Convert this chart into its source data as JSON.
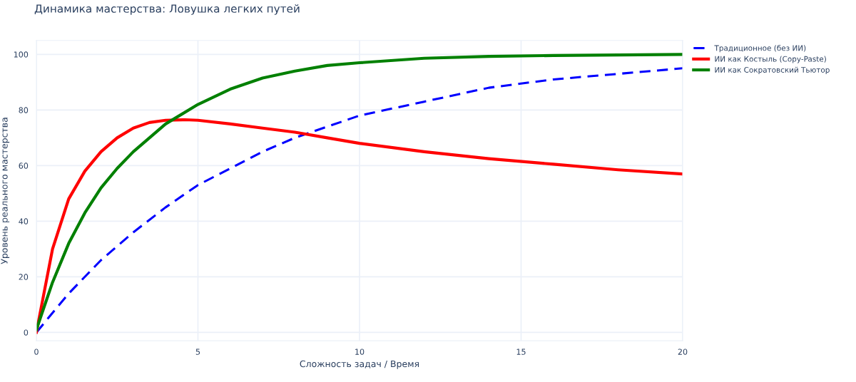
{
  "chart_data": {
    "type": "line",
    "title": "Динамика мастерства: Ловушка легких путей",
    "xlabel": "Сложность задач / Время",
    "ylabel": "Уровень реального мастерства",
    "xlim": [
      0,
      20
    ],
    "ylim": [
      -3,
      105
    ],
    "xticks": [
      0,
      5,
      10,
      15,
      20
    ],
    "yticks": [
      0,
      20,
      40,
      60,
      80,
      100
    ],
    "grid": true,
    "legend": "top right",
    "marker": "none",
    "series": [
      {
        "name": "Традиционное (без ИИ)",
        "color": "#0000ff",
        "line_style": "dashed",
        "x": [
          0,
          1,
          2,
          3,
          4,
          5,
          6,
          7,
          8,
          9,
          10,
          12,
          14,
          16,
          18,
          20
        ],
        "values": [
          0,
          14,
          26,
          36,
          45,
          53,
          59,
          65,
          70,
          74,
          78,
          83,
          88,
          91,
          93,
          95
        ]
      },
      {
        "name": "ИИ как Костыль (Copy-Paste)",
        "color": "#ff0000",
        "line_style": "solid",
        "x": [
          0,
          0.5,
          1,
          1.5,
          2,
          2.5,
          3,
          3.5,
          4,
          4.6,
          5,
          6,
          7,
          8,
          9,
          10,
          12,
          14,
          16,
          18,
          20
        ],
        "values": [
          0,
          30,
          48,
          58,
          65,
          70,
          73.5,
          75.5,
          76.3,
          76.5,
          76.3,
          75,
          73.5,
          72,
          70,
          68,
          65,
          62.5,
          60.5,
          58.5,
          57
        ]
      },
      {
        "name": "ИИ как Сократовский Тьютор",
        "color": "#008000",
        "line_style": "solid",
        "x": [
          0,
          0.5,
          1,
          1.5,
          2,
          2.5,
          3,
          3.5,
          4,
          5,
          6,
          7,
          8,
          9,
          10,
          12,
          14,
          16,
          18,
          20
        ],
        "values": [
          1,
          18,
          32,
          43,
          52,
          59,
          65,
          70,
          75,
          82,
          87.5,
          91.5,
          94,
          96,
          97,
          98.6,
          99.3,
          99.6,
          99.8,
          100
        ]
      }
    ]
  }
}
